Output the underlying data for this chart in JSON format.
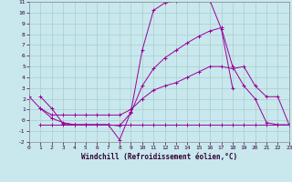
{
  "xlabel": "Windchill (Refroidissement éolien,°C)",
  "background_color": "#c8e8ee",
  "grid_color": "#aacccc",
  "line_color": "#990099",
  "xlim": [
    0,
    23
  ],
  "ylim": [
    -2,
    11
  ],
  "xticks": [
    0,
    1,
    2,
    3,
    4,
    5,
    6,
    7,
    8,
    9,
    10,
    11,
    12,
    13,
    14,
    15,
    16,
    17,
    18,
    19,
    20,
    21,
    22,
    23
  ],
  "yticks": [
    -2,
    -1,
    0,
    1,
    2,
    3,
    4,
    5,
    6,
    7,
    8,
    9,
    10,
    11
  ],
  "series": [
    {
      "x": [
        1,
        2,
        3,
        4,
        5,
        6,
        7,
        8,
        9,
        10,
        11,
        12,
        13,
        14,
        15,
        16,
        17,
        18
      ],
      "y": [
        2.2,
        1.1,
        -0.3,
        -0.4,
        -0.4,
        -0.4,
        -0.4,
        -1.8,
        0.8,
        6.5,
        10.2,
        10.9,
        11.1,
        11.2,
        11.2,
        11.1,
        8.5,
        3.0
      ]
    },
    {
      "x": [
        1,
        2,
        3,
        4,
        5,
        6,
        7,
        8,
        9,
        10,
        11,
        12,
        13,
        14,
        15,
        16,
        17,
        18,
        19,
        20,
        21,
        22,
        23
      ],
      "y": [
        1.1,
        0.2,
        -0.2,
        -0.4,
        -0.4,
        -0.4,
        -0.4,
        -0.5,
        0.7,
        3.2,
        4.8,
        5.8,
        6.5,
        7.2,
        7.8,
        8.3,
        8.6,
        5.0,
        3.2,
        2.0,
        -0.2,
        -0.4,
        -0.4
      ]
    },
    {
      "x": [
        0,
        1,
        2,
        3,
        4,
        5,
        6,
        7,
        8,
        9,
        10,
        11,
        12,
        13,
        14,
        15,
        16,
        17,
        18,
        19,
        20,
        21,
        22,
        23
      ],
      "y": [
        2.2,
        1.1,
        0.5,
        0.5,
        0.5,
        0.5,
        0.5,
        0.5,
        0.5,
        1.0,
        2.0,
        2.8,
        3.2,
        3.5,
        4.0,
        4.5,
        5.0,
        5.0,
        4.8,
        5.0,
        3.2,
        2.2,
        2.2,
        -0.4
      ]
    },
    {
      "x": [
        1,
        2,
        3,
        4,
        5,
        6,
        7,
        8,
        9,
        10,
        11,
        12,
        13,
        14,
        15,
        16,
        17,
        18,
        19,
        20,
        21,
        22,
        23
      ],
      "y": [
        -0.4,
        -0.4,
        -0.4,
        -0.4,
        -0.4,
        -0.4,
        -0.4,
        -0.4,
        -0.4,
        -0.4,
        -0.4,
        -0.4,
        -0.4,
        -0.4,
        -0.4,
        -0.4,
        -0.4,
        -0.4,
        -0.4,
        -0.4,
        -0.4,
        -0.4,
        -0.4
      ]
    }
  ]
}
